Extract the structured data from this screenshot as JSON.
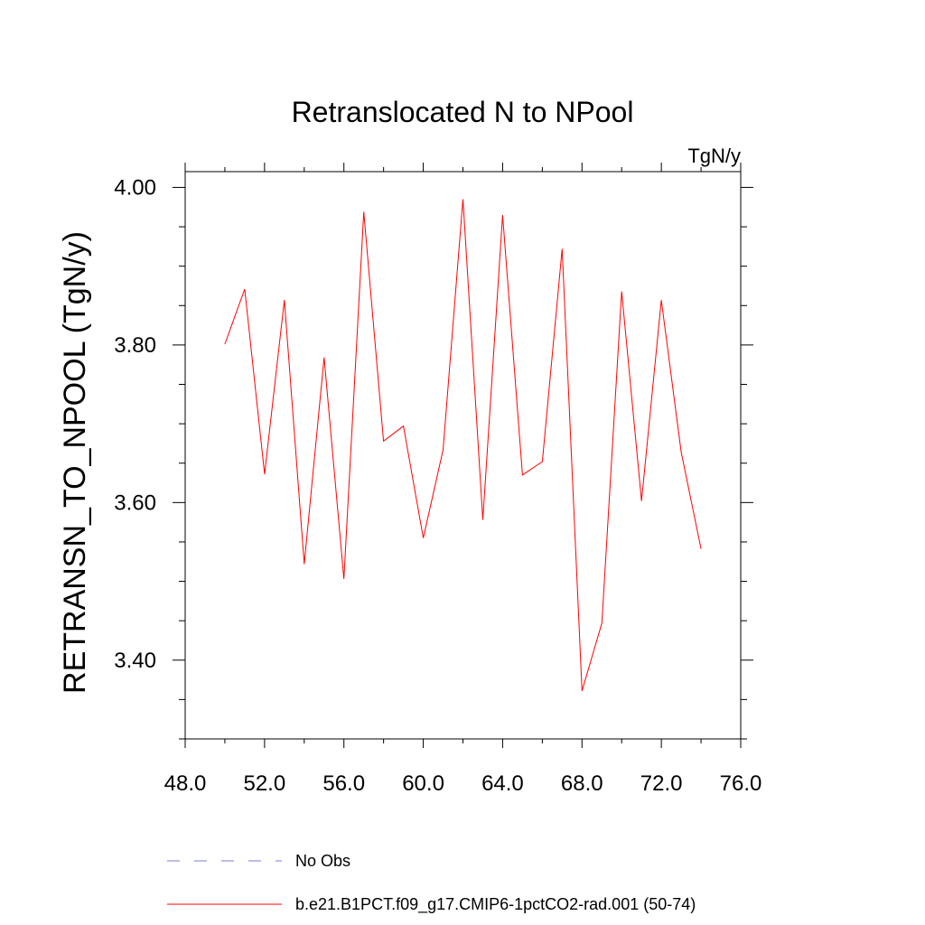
{
  "chart_data": {
    "type": "line",
    "title": "Retranslocated N to NPool",
    "units_label": "TgN/y",
    "ylabel": "RETRANSN_TO_NPOOL  (TgN/y)",
    "xlabel": "",
    "xlim": [
      48,
      76
    ],
    "ylim": [
      3.3,
      4.02
    ],
    "x_ticks": [
      48,
      52,
      56,
      60,
      64,
      68,
      72,
      76
    ],
    "x_tick_labels": [
      "48.0",
      "52.0",
      "56.0",
      "60.0",
      "64.0",
      "68.0",
      "72.0",
      "76.0"
    ],
    "y_ticks": [
      3.4,
      3.6,
      3.8,
      4.0
    ],
    "y_tick_labels": [
      "3.40",
      "3.60",
      "3.80",
      "4.00"
    ],
    "grid": false,
    "legend_position": "bottom",
    "series": [
      {
        "name": "b.e21.B1PCT.f09_g17.CMIP6-1pctCO2-rad.001 (50-74)",
        "color": "#ff0000",
        "x": [
          50,
          51,
          52,
          53,
          54,
          55,
          56,
          57,
          58,
          59,
          60,
          61,
          62,
          63,
          64,
          65,
          66,
          67,
          68,
          69,
          70,
          71,
          72,
          73,
          74
        ],
        "y": [
          3.801,
          3.871,
          3.636,
          3.857,
          3.522,
          3.784,
          3.503,
          3.969,
          3.678,
          3.697,
          3.555,
          3.667,
          3.985,
          3.578,
          3.965,
          3.635,
          3.652,
          3.922,
          3.361,
          3.447,
          3.868,
          3.602,
          3.857,
          3.664,
          3.541
        ]
      }
    ],
    "legend": [
      {
        "label": "No Obs",
        "color": "#7b7bcc",
        "style": "dashed"
      },
      {
        "label": "b.e21.B1PCT.f09_g17.CMIP6-1pctCO2-rad.001 (50-74)",
        "color": "#ff0000",
        "style": "solid"
      }
    ]
  }
}
